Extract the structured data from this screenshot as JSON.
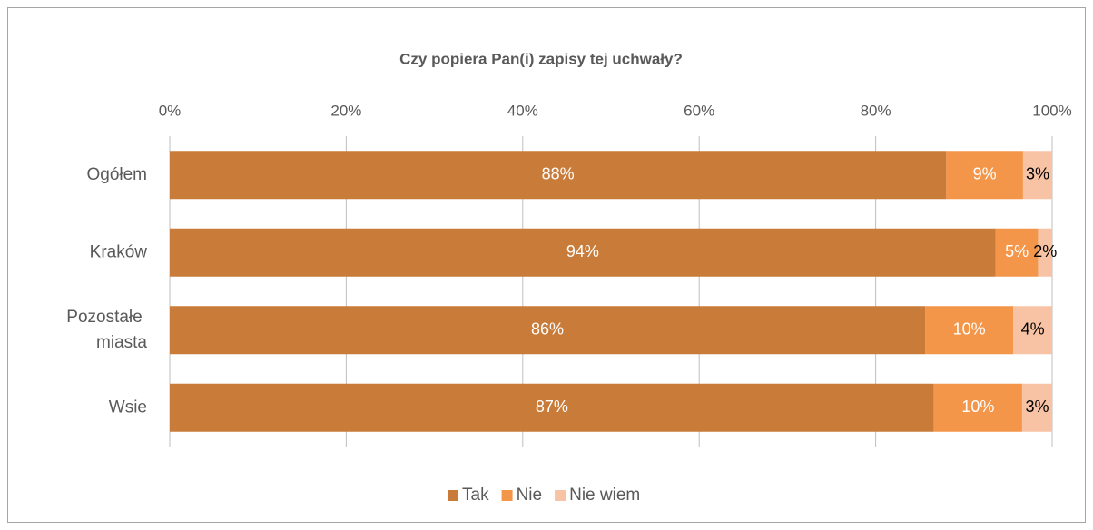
{
  "chart_data": {
    "type": "bar",
    "orientation": "horizontal",
    "stacked": true,
    "title": "Czy popiera Pan(i) zapisy tej uchwały?",
    "categories": [
      "Ogółem",
      "Kraków",
      "Pozostałe miasta",
      "Wsie"
    ],
    "series": [
      {
        "name": "Tak",
        "color": "#C97B39",
        "label_color": "#ffffff",
        "values": [
          88.0,
          93.6,
          85.6,
          86.6
        ],
        "value_labels": [
          "88%",
          "94%",
          "86%",
          "87%"
        ]
      },
      {
        "name": "Nie",
        "color": "#F4964A",
        "label_color": "#ffffff",
        "values": [
          8.7,
          4.8,
          10.0,
          10.0
        ],
        "value_labels": [
          "9%",
          "5%",
          "10%",
          "10%"
        ]
      },
      {
        "name": "Nie wiem",
        "color": "#F8C3A5",
        "label_color": "#000000",
        "values": [
          3.3,
          1.6,
          4.4,
          3.4
        ],
        "value_labels": [
          "3%",
          "2%",
          "4%",
          "3%"
        ]
      }
    ],
    "xlim": [
      0,
      100
    ],
    "xticks": [
      {
        "value": 0,
        "label": "0%"
      },
      {
        "value": 20,
        "label": "20%"
      },
      {
        "value": 40,
        "label": "40%"
      },
      {
        "value": 60,
        "label": "60%"
      },
      {
        "value": 80,
        "label": "80%"
      },
      {
        "value": 100,
        "label": "100%"
      }
    ],
    "grid": true,
    "legend": "bottom"
  }
}
